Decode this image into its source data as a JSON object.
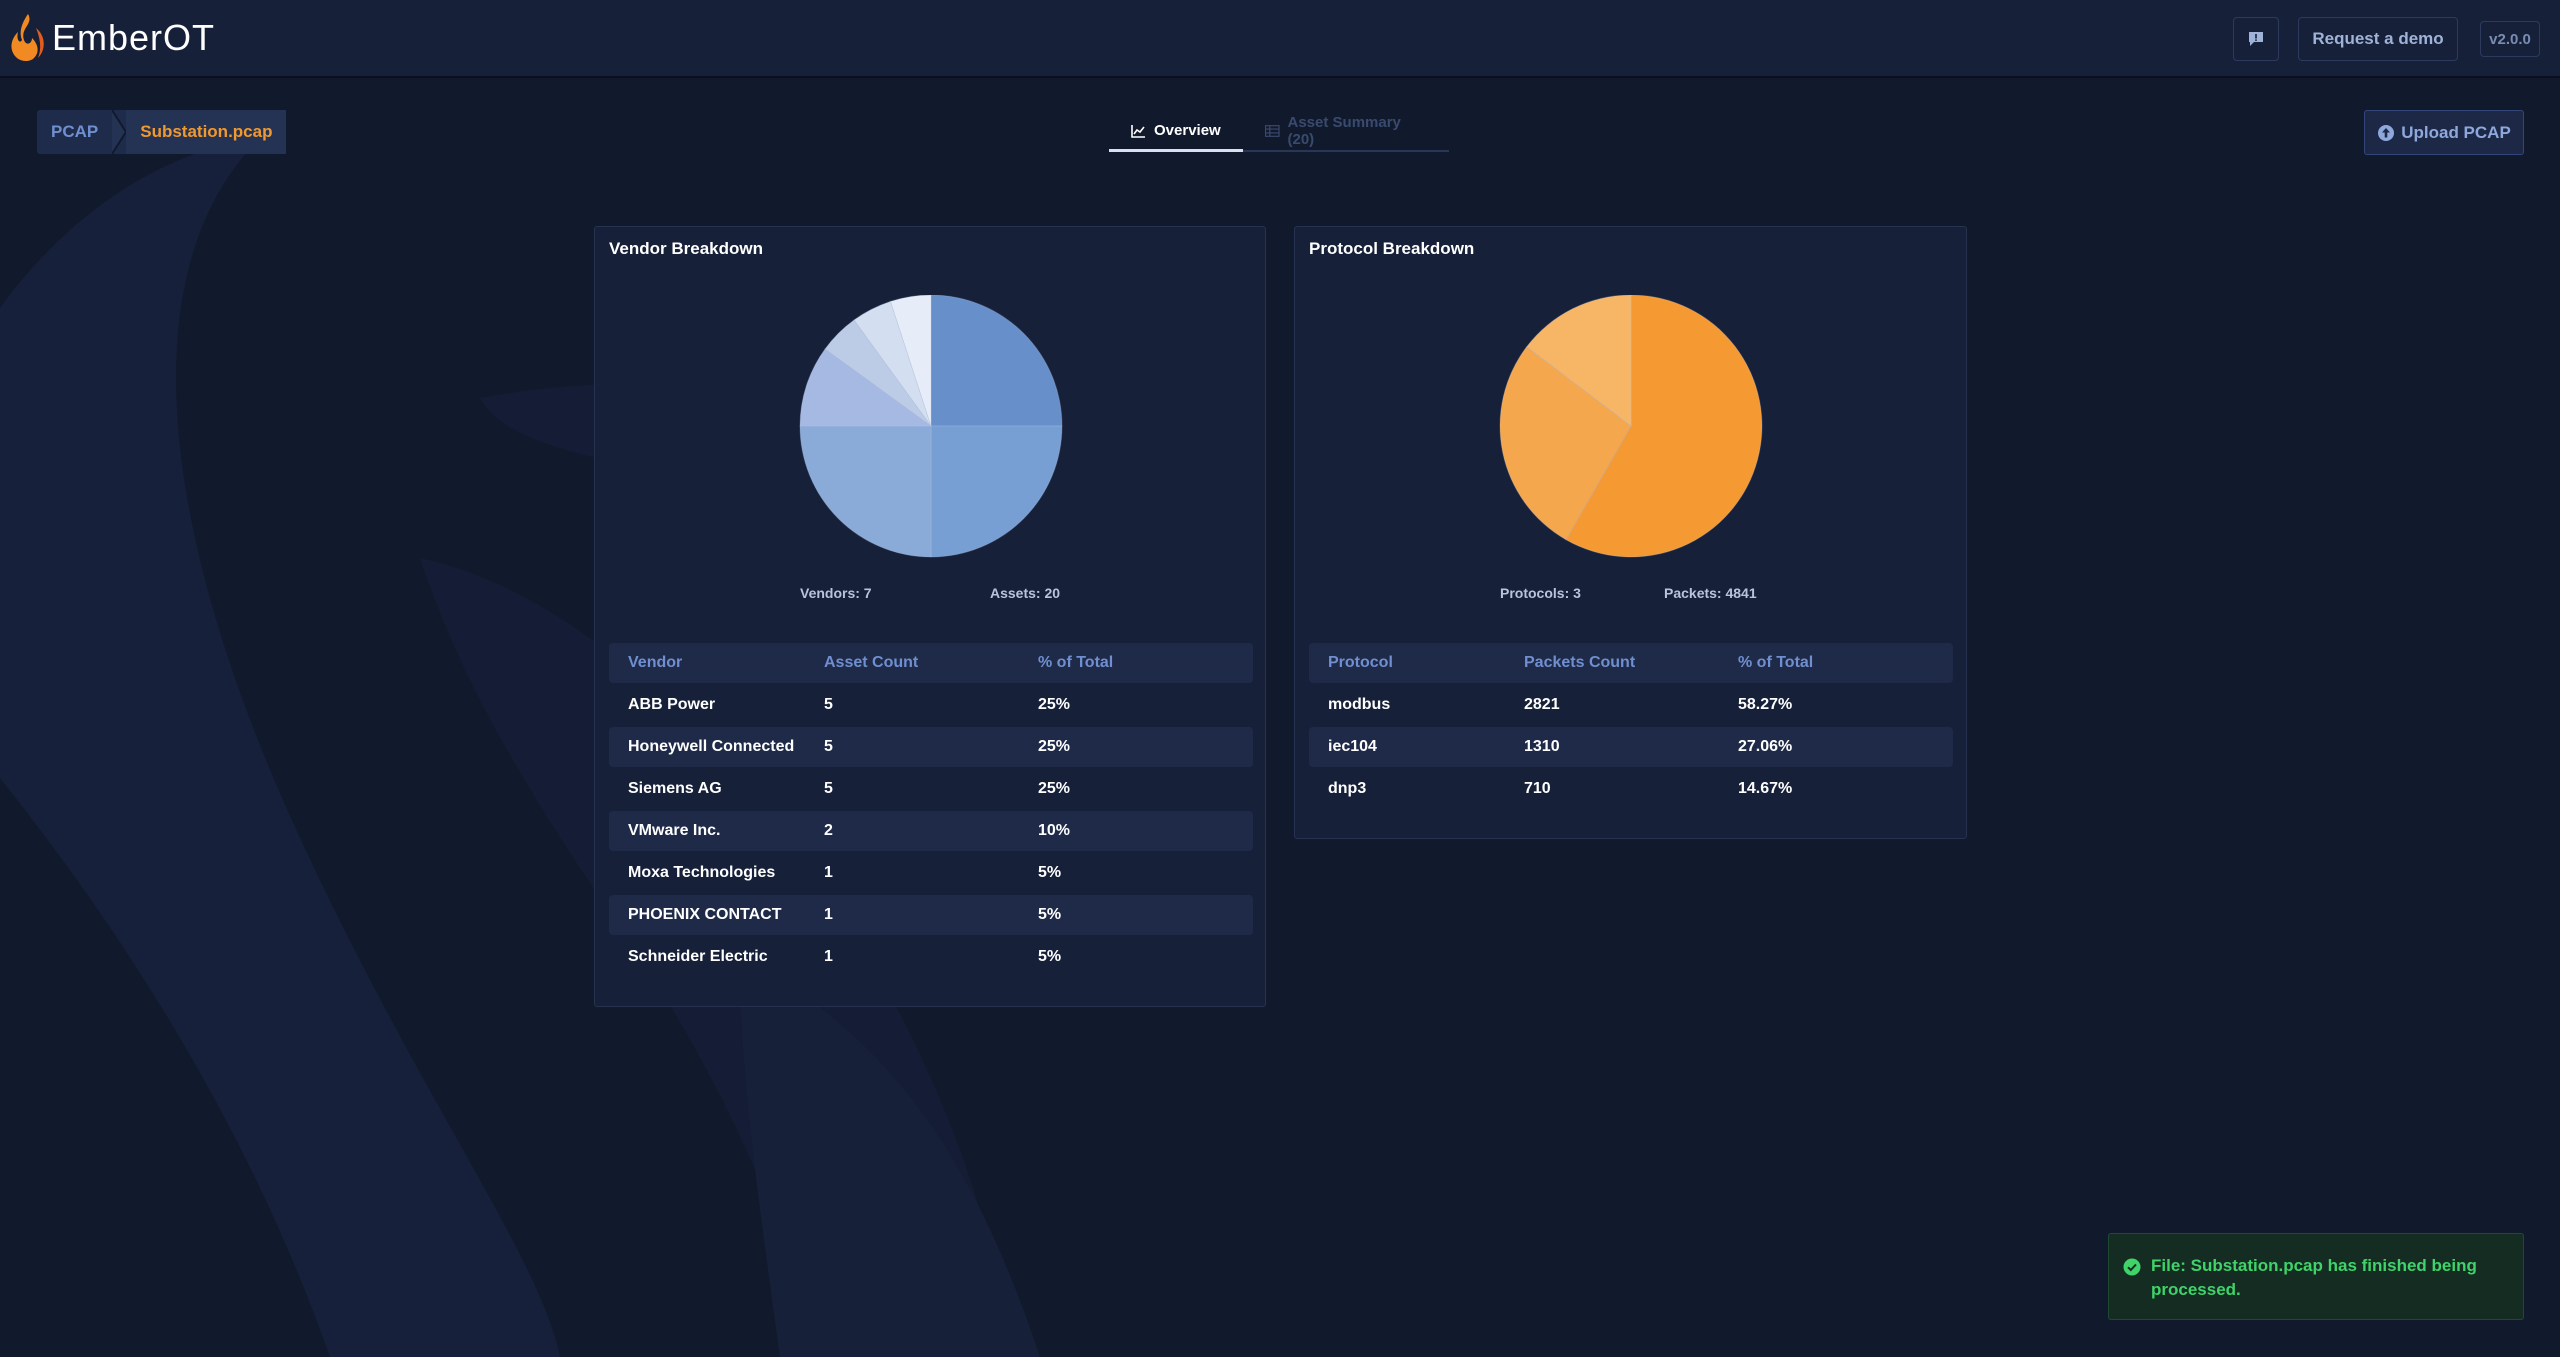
{
  "app": {
    "name": "EmberOT",
    "version": "v2.0.0"
  },
  "header": {
    "request_demo_label": "Request a demo"
  },
  "breadcrumb": {
    "root": "PCAP",
    "current": "Substation.pcap"
  },
  "tabs": [
    {
      "label": "Overview",
      "active": true
    },
    {
      "label": "Asset Summary (20)",
      "active": false
    }
  ],
  "upload": {
    "label": "Upload PCAP"
  },
  "vendor_card": {
    "title": "Vendor Breakdown",
    "stats": [
      "Vendors: 7",
      "Assets: 20"
    ],
    "columns": [
      "Vendor",
      "Asset Count",
      "% of Total"
    ],
    "rows": [
      [
        "ABB Power",
        "5",
        "25%"
      ],
      [
        "Honeywell Connected",
        "5",
        "25%"
      ],
      [
        "Siemens AG",
        "5",
        "25%"
      ],
      [
        "VMware Inc.",
        "2",
        "10%"
      ],
      [
        "Moxa Technologies",
        "1",
        "5%"
      ],
      [
        "PHOENIX CONTACT",
        "1",
        "5%"
      ],
      [
        "Schneider Electric",
        "1",
        "5%"
      ]
    ]
  },
  "protocol_card": {
    "title": "Protocol Breakdown",
    "stats": [
      "Protocols: 3",
      "Packets: 4841"
    ],
    "columns": [
      "Protocol",
      "Packets Count",
      "% of Total"
    ],
    "rows": [
      [
        "modbus",
        "2821",
        "58.27%"
      ],
      [
        "iec104",
        "1310",
        "27.06%"
      ],
      [
        "dnp3",
        "710",
        "14.67%"
      ]
    ]
  },
  "chart_data": [
    {
      "type": "pie",
      "categories": [
        "ABB Power",
        "Honeywell Connected",
        "Siemens AG",
        "VMware Inc.",
        "Moxa Technologies",
        "PHOENIX CONTACT",
        "Schneider Electric"
      ],
      "values": [
        5,
        5,
        5,
        2,
        1,
        1,
        1
      ],
      "colors": [
        "#6790cb",
        "#789fd4",
        "#8aaad8",
        "#a6b9e3",
        "#bccce6",
        "#d3def0",
        "#e6edf8"
      ]
    },
    {
      "type": "pie",
      "categories": [
        "modbus",
        "iec104",
        "dnp3"
      ],
      "values": [
        2821,
        1310,
        710
      ],
      "colors": [
        "#f59a33",
        "#f5a74d",
        "#f7b566"
      ]
    }
  ],
  "toast": {
    "message": "File: Substation.pcap has finished being processed.",
    "status_color": "#3fd36a"
  },
  "icons": {
    "logo": "flame-icon",
    "feedback": "comment-icon",
    "overview_tab": "line-chart-icon",
    "assets_tab": "table-icon",
    "upload": "upload-circle-icon",
    "toast": "check-circle-icon"
  }
}
